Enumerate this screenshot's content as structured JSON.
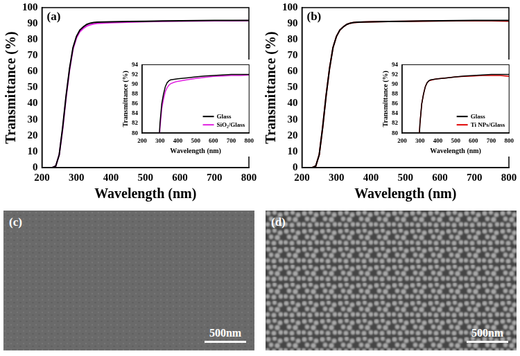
{
  "chart_data": [
    {
      "type": "line",
      "label": "(a)",
      "x_label": "Wavelength (nm)",
      "y_label": "Transmittance (%)",
      "xlim": [
        200,
        800
      ],
      "xticks": [
        200,
        300,
        400,
        500,
        600,
        700,
        800
      ],
      "ylim": [
        0,
        100
      ],
      "yticks": [
        0,
        10,
        20,
        30,
        40,
        50,
        60,
        70,
        80,
        90,
        100
      ],
      "grid": false,
      "x": [
        200,
        230,
        240,
        250,
        260,
        270,
        280,
        290,
        300,
        310,
        320,
        330,
        340,
        350,
        360,
        380,
        400,
        450,
        500,
        550,
        600,
        650,
        700,
        750,
        800
      ],
      "series": [
        {
          "name": "Glass",
          "color": "#000000",
          "values": [
            0,
            0,
            1,
            8,
            25,
            45,
            62,
            75,
            82,
            86,
            88,
            89.5,
            90.3,
            90.7,
            90.9,
            91.0,
            91.1,
            91.3,
            91.5,
            91.7,
            91.8,
            91.9,
            92.0,
            92.0,
            92.0
          ]
        },
        {
          "name": "SiO₂/Glass",
          "color": "#e01ee0",
          "values": [
            0,
            0,
            1,
            8,
            24,
            44,
            61,
            74,
            81,
            85,
            87,
            88.5,
            89.3,
            89.8,
            90.1,
            90.4,
            90.6,
            90.9,
            91.2,
            91.4,
            91.6,
            91.7,
            91.8,
            91.8,
            91.9
          ]
        }
      ],
      "inset": {
        "x_label": "Wavelength (nm)",
        "y_label": "Transmittance (%)",
        "xlim": [
          200,
          800
        ],
        "xticks": [
          200,
          300,
          400,
          500,
          600,
          700,
          800
        ],
        "ylim": [
          80,
          94
        ],
        "yticks": [
          80,
          82,
          84,
          86,
          88,
          90,
          92,
          94
        ],
        "legend": "lower right"
      }
    },
    {
      "type": "line",
      "label": "(b)",
      "x_label": "Wavelength (nm)",
      "y_label": "Transmittance (%)",
      "xlim": [
        200,
        800
      ],
      "xticks": [
        200,
        300,
        400,
        500,
        600,
        700,
        800
      ],
      "ylim": [
        0,
        100
      ],
      "yticks": [
        0,
        10,
        20,
        30,
        40,
        50,
        60,
        70,
        80,
        90,
        100
      ],
      "grid": false,
      "x": [
        200,
        230,
        240,
        250,
        260,
        270,
        280,
        290,
        300,
        310,
        320,
        330,
        340,
        350,
        360,
        380,
        400,
        450,
        500,
        550,
        600,
        650,
        700,
        750,
        800
      ],
      "series": [
        {
          "name": "Glass",
          "color": "#000000",
          "values": [
            0,
            0,
            1,
            8,
            25,
            45,
            62,
            75,
            82,
            86,
            88,
            89.5,
            90.3,
            90.7,
            90.9,
            91.0,
            91.1,
            91.3,
            91.5,
            91.7,
            91.8,
            91.9,
            92.0,
            92.0,
            92.0
          ]
        },
        {
          "name": "Ti NPs/Glass",
          "color": "#e00000",
          "values": [
            0,
            0,
            1,
            8,
            25,
            45,
            62,
            75,
            82,
            86,
            88,
            89.5,
            90.3,
            90.7,
            90.8,
            91.0,
            91.1,
            91.3,
            91.5,
            91.6,
            91.7,
            91.8,
            91.8,
            91.8,
            91.6
          ]
        }
      ],
      "inset": {
        "x_label": "Wavelength (nm)",
        "y_label": "Transmittance (%)",
        "xlim": [
          200,
          800
        ],
        "xticks": [
          200,
          300,
          400,
          500,
          600,
          700,
          800
        ],
        "ylim": [
          80,
          94
        ],
        "yticks": [
          80,
          82,
          84,
          86,
          88,
          90,
          92,
          94
        ],
        "legend": "lower right"
      }
    }
  ],
  "images": [
    {
      "label": "(c)",
      "scale_bar": "500nm"
    },
    {
      "label": "(d)",
      "scale_bar": "500nm"
    }
  ]
}
